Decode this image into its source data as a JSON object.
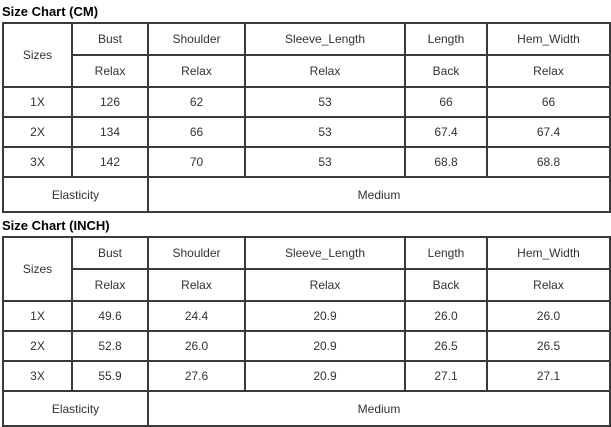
{
  "colors": {
    "background": "#ffffff",
    "border": "#3a3a3a",
    "cell_text": "#333333",
    "title_text": "#000000"
  },
  "tables": [
    {
      "title": "Size Chart (CM)",
      "header": {
        "sizes_label": "Sizes",
        "columns": [
          "Bust",
          "Shoulder",
          "Sleeve_Length",
          "Length",
          "Hem_Width"
        ],
        "measure_types": [
          "Relax",
          "Relax",
          "Relax",
          "Back",
          "Relax"
        ]
      },
      "rows": [
        {
          "size": "1X",
          "values": [
            "126",
            "62",
            "53",
            "66",
            "66"
          ]
        },
        {
          "size": "2X",
          "values": [
            "134",
            "66",
            "53",
            "67.4",
            "67.4"
          ]
        },
        {
          "size": "3X",
          "values": [
            "142",
            "70",
            "53",
            "68.8",
            "68.8"
          ]
        }
      ],
      "footer": {
        "label": "Elasticity",
        "value": "Medium"
      }
    },
    {
      "title": "Size Chart (INCH)",
      "header": {
        "sizes_label": "Sizes",
        "columns": [
          "Bust",
          "Shoulder",
          "Sleeve_Length",
          "Length",
          "Hem_Width"
        ],
        "measure_types": [
          "Relax",
          "Relax",
          "Relax",
          "Back",
          "Relax"
        ]
      },
      "rows": [
        {
          "size": "1X",
          "values": [
            "49.6",
            "24.4",
            "20.9",
            "26.0",
            "26.0"
          ]
        },
        {
          "size": "2X",
          "values": [
            "52.8",
            "26.0",
            "20.9",
            "26.5",
            "26.5"
          ]
        },
        {
          "size": "3X",
          "values": [
            "55.9",
            "27.6",
            "20.9",
            "27.1",
            "27.1"
          ]
        }
      ],
      "footer": {
        "label": "Elasticity",
        "value": "Medium"
      }
    }
  ],
  "chart_data": [
    {
      "type": "table",
      "title": "Size Chart (CM)",
      "columns": [
        "Sizes",
        "Bust Relax",
        "Shoulder Relax",
        "Sleeve_Length Relax",
        "Length Back",
        "Hem_Width Relax"
      ],
      "rows": [
        [
          "1X",
          "126",
          "62",
          "53",
          "66",
          "66"
        ],
        [
          "2X",
          "134",
          "66",
          "53",
          "67.4",
          "67.4"
        ],
        [
          "3X",
          "142",
          "70",
          "53",
          "68.8",
          "68.8"
        ],
        [
          "Elasticity",
          "Medium"
        ]
      ]
    },
    {
      "type": "table",
      "title": "Size Chart (INCH)",
      "columns": [
        "Sizes",
        "Bust Relax",
        "Shoulder Relax",
        "Sleeve_Length Relax",
        "Length Back",
        "Hem_Width Relax"
      ],
      "rows": [
        [
          "1X",
          "49.6",
          "24.4",
          "20.9",
          "26.0",
          "26.0"
        ],
        [
          "2X",
          "52.8",
          "26.0",
          "20.9",
          "26.5",
          "26.5"
        ],
        [
          "3X",
          "55.9",
          "27.6",
          "20.9",
          "27.1",
          "27.1"
        ],
        [
          "Elasticity",
          "Medium"
        ]
      ]
    }
  ]
}
